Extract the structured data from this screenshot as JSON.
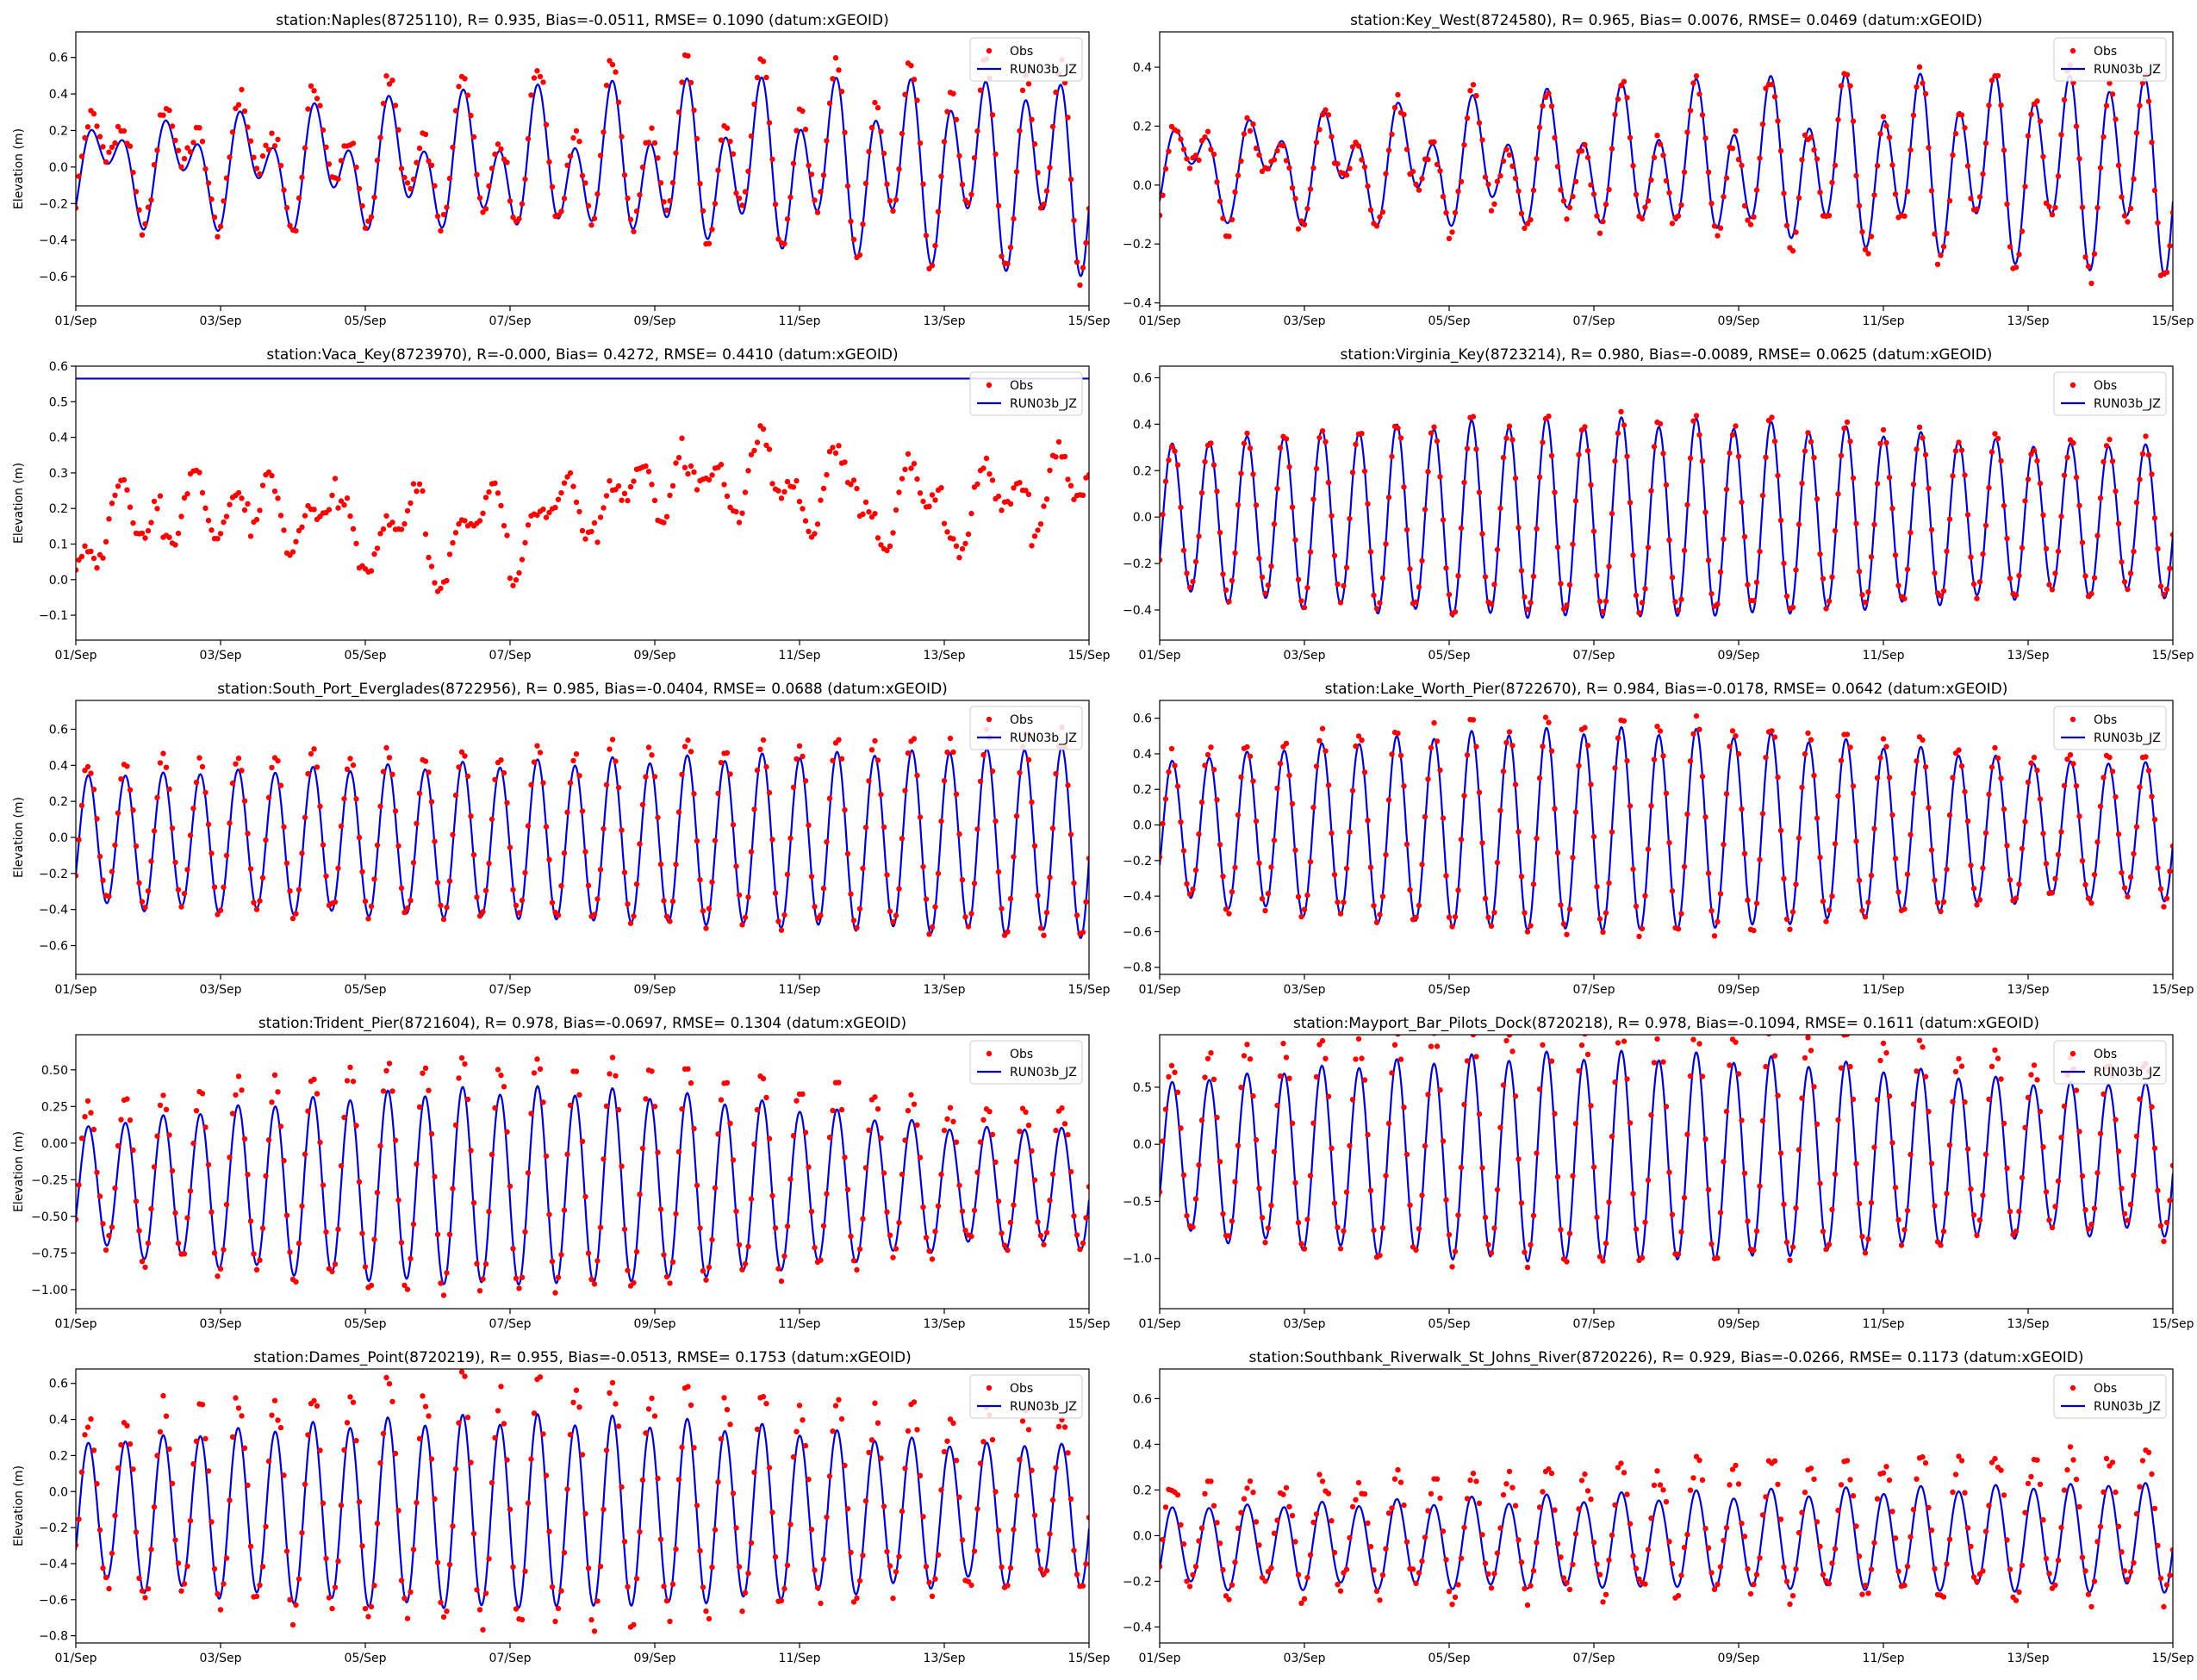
{
  "figure": {
    "obs_color": "#ff0000",
    "model_color": "#0000cc",
    "legend_obs": "Obs",
    "legend_model": "RUN03b_JZ",
    "xlabel_dates": [
      "01/Sep",
      "03/Sep",
      "05/Sep",
      "07/Sep",
      "09/Sep",
      "11/Sep",
      "13/Sep",
      "15/Sep"
    ]
  },
  "chart_data": [
    {
      "type": "line",
      "title": "station:Naples(8725110), R= 0.935, Bias=-0.0511, RMSE= 0.1090 (datum:xGEOID)",
      "ylabel": "Elevation (m)",
      "xlim": [
        0,
        14
      ],
      "ylim": [
        -0.76,
        0.74
      ],
      "yticks": [
        -0.6,
        -0.4,
        -0.2,
        0.0,
        0.2,
        0.4,
        0.6
      ],
      "ytick_labels": [
        "−0.6",
        "−0.4",
        "−0.2",
        "0.0",
        "0.2",
        "0.4",
        "0.6"
      ],
      "legend": [
        "Obs",
        "RUN03b_JZ"
      ],
      "series": [
        {
          "name": "RUN03b_JZ",
          "kind": "line",
          "mean": 0.0,
          "amp_start": 0.15,
          "amp_end": 0.42,
          "m2_mode": "ramp",
          "diurnal": 0.18
        },
        {
          "name": "Obs",
          "kind": "points",
          "bias": 0.05,
          "scale": 1.12,
          "noise": 0.05
        }
      ]
    },
    {
      "type": "line",
      "title": "station:Key_West(8724580), R= 0.965, Bias= 0.0076, RMSE= 0.0469 (datum:xGEOID)",
      "ylabel": "",
      "xlim": [
        0,
        14
      ],
      "ylim": [
        -0.41,
        0.52
      ],
      "yticks": [
        -0.4,
        -0.2,
        0.0,
        0.2,
        0.4
      ],
      "ytick_labels": [
        "−0.4",
        "−0.2",
        "0.0",
        "0.2",
        "0.4"
      ],
      "legend": [
        "Obs",
        "RUN03b_JZ"
      ],
      "series": [
        {
          "name": "RUN03b_JZ",
          "kind": "line",
          "mean": 0.07,
          "amp_start": 0.09,
          "amp_end": 0.28,
          "m2_mode": "ramp",
          "diurnal": 0.1
        },
        {
          "name": "Obs",
          "kind": "points",
          "bias": -0.01,
          "scale": 1.05,
          "noise": 0.035
        }
      ]
    },
    {
      "type": "line",
      "title": "station:Vaca_Key(8723970), R=-0.000, Bias= 0.4272, RMSE= 0.4410 (datum:xGEOID)",
      "ylabel": "Elevation (m)",
      "xlim": [
        0,
        14
      ],
      "ylim": [
        -0.17,
        0.6
      ],
      "yticks": [
        -0.1,
        0.0,
        0.1,
        0.2,
        0.3,
        0.4,
        0.5,
        0.6
      ],
      "ytick_labels": [
        "−0.1",
        "0.0",
        "0.1",
        "0.2",
        "0.3",
        "0.4",
        "0.5",
        "0.6"
      ],
      "legend": [
        "Obs",
        "RUN03b_JZ"
      ],
      "series": [
        {
          "name": "RUN03b_JZ",
          "kind": "flat",
          "value": 0.565
        },
        {
          "name": "Obs",
          "kind": "points",
          "pattern": "vaca",
          "noise": 0.02
        }
      ]
    },
    {
      "type": "line",
      "title": "station:Virginia_Key(8723214), R= 0.980, Bias=-0.0089, RMSE= 0.0625 (datum:xGEOID)",
      "ylabel": "",
      "xlim": [
        0,
        14
      ],
      "ylim": [
        -0.53,
        0.65
      ],
      "yticks": [
        -0.4,
        -0.2,
        0.0,
        0.2,
        0.4,
        0.6
      ],
      "ytick_labels": [
        "−0.4",
        "−0.2",
        "0.0",
        "0.2",
        "0.4",
        "0.6"
      ],
      "legend": [
        "Obs",
        "RUN03b_JZ"
      ],
      "series": [
        {
          "name": "RUN03b_JZ",
          "kind": "line",
          "mean": -0.01,
          "amp_start": 0.32,
          "amp_end": 0.42,
          "m2_mode": "hump",
          "diurnal": 0.02
        },
        {
          "name": "Obs",
          "kind": "points",
          "bias": 0.01,
          "scale": 1.0,
          "noise": 0.03
        }
      ]
    },
    {
      "type": "line",
      "title": "station:South_Port_Everglades(8722956), R= 0.985, Bias=-0.0404, RMSE= 0.0688 (datum:xGEOID)",
      "ylabel": "Elevation (m)",
      "xlim": [
        0,
        14
      ],
      "ylim": [
        -0.76,
        0.76
      ],
      "yticks": [
        -0.6,
        -0.4,
        -0.2,
        0.0,
        0.2,
        0.4,
        0.6
      ],
      "ytick_labels": [
        "−0.6",
        "−0.4",
        "−0.2",
        "0.0",
        "0.2",
        "0.4",
        "0.6"
      ],
      "legend": [
        "Obs",
        "RUN03b_JZ"
      ],
      "series": [
        {
          "name": "RUN03b_JZ",
          "kind": "line",
          "mean": -0.02,
          "amp_start": 0.36,
          "amp_end": 0.52,
          "m2_mode": "ramp",
          "diurnal": 0.02
        },
        {
          "name": "Obs",
          "kind": "points",
          "bias": 0.04,
          "scale": 1.08,
          "noise": 0.035
        }
      ]
    },
    {
      "type": "line",
      "title": "station:Lake_Worth_Pier(8722670), R= 0.984, Bias=-0.0178, RMSE= 0.0642 (datum:xGEOID)",
      "ylabel": "",
      "xlim": [
        0,
        14
      ],
      "ylim": [
        -0.84,
        0.7
      ],
      "yticks": [
        -0.8,
        -0.6,
        -0.4,
        -0.2,
        0.0,
        0.2,
        0.4,
        0.6
      ],
      "ytick_labels": [
        "−0.8",
        "−0.6",
        "−0.4",
        "−0.2",
        "0.0",
        "0.2",
        "0.4",
        "0.6"
      ],
      "legend": [
        "Obs",
        "RUN03b_JZ"
      ],
      "series": [
        {
          "name": "RUN03b_JZ",
          "kind": "line",
          "mean": -0.03,
          "amp_start": 0.38,
          "amp_end": 0.56,
          "m2_mode": "hump",
          "diurnal": 0.02
        },
        {
          "name": "Obs",
          "kind": "points",
          "bias": 0.02,
          "scale": 1.06,
          "noise": 0.04
        }
      ]
    },
    {
      "type": "line",
      "title": "station:Trident_Pier(8721604), R= 0.978, Bias=-0.0697, RMSE= 0.1304 (datum:xGEOID)",
      "ylabel": "Elevation (m)",
      "xlim": [
        0,
        14
      ],
      "ylim": [
        -1.13,
        0.74
      ],
      "yticks": [
        -1.0,
        -0.75,
        -0.5,
        -0.25,
        0.0,
        0.25,
        0.5
      ],
      "ytick_labels": [
        "−1.00",
        "−0.75",
        "−0.50",
        "−0.25",
        "0.00",
        "0.25",
        "0.50"
      ],
      "legend": [
        "Obs",
        "RUN03b_JZ"
      ],
      "series": [
        {
          "name": "RUN03b_JZ",
          "kind": "line",
          "mean": -0.3,
          "amp_start": 0.4,
          "amp_end": 0.66,
          "m2_mode": "hump",
          "diurnal": 0.03
        },
        {
          "name": "Obs",
          "kind": "points",
          "bias": 0.07,
          "scale": 1.18,
          "noise": 0.05
        }
      ]
    },
    {
      "type": "line",
      "title": "station:Mayport_Bar_Pilots_Dock(8720218), R= 0.978, Bias=-0.1094, RMSE= 0.1611 (datum:xGEOID)",
      "ylabel": "",
      "xlim": [
        0,
        14
      ],
      "ylim": [
        -1.44,
        0.96
      ],
      "yticks": [
        -1.0,
        -0.5,
        0.0,
        0.5
      ],
      "ytick_labels": [
        "−1.0",
        "−0.5",
        "0.0",
        "0.5"
      ],
      "legend": [
        "Obs",
        "RUN03b_JZ"
      ],
      "series": [
        {
          "name": "RUN03b_JZ",
          "kind": "line",
          "mean": -0.12,
          "amp_start": 0.65,
          "amp_end": 0.9,
          "m2_mode": "hump",
          "diurnal": 0.04
        },
        {
          "name": "Obs",
          "kind": "points",
          "bias": 0.11,
          "scale": 1.14,
          "noise": 0.06
        }
      ]
    },
    {
      "type": "line",
      "title": "station:Dames_Point(8720219), R= 0.955, Bias=-0.0513, RMSE= 0.1753 (datum:xGEOID)",
      "ylabel": "Elevation (m)",
      "xlim": [
        0,
        14
      ],
      "ylim": [
        -0.84,
        0.68
      ],
      "yticks": [
        -0.8,
        -0.6,
        -0.4,
        -0.2,
        0.0,
        0.2,
        0.4,
        0.6
      ],
      "ytick_labels": [
        "−0.8",
        "−0.6",
        "−0.4",
        "−0.2",
        "0.0",
        "0.2",
        "0.4",
        "0.6"
      ],
      "legend": [
        "Obs",
        "RUN03b_JZ"
      ],
      "series": [
        {
          "name": "RUN03b_JZ",
          "kind": "line",
          "mean": -0.12,
          "amp_start": 0.38,
          "amp_end": 0.52,
          "m2_mode": "hump",
          "diurnal": 0.03
        },
        {
          "name": "Obs",
          "kind": "points",
          "bias": 0.05,
          "scale": 1.25,
          "noise": 0.07,
          "phase_shift": 0.3
        }
      ]
    },
    {
      "type": "line",
      "title": "station:Southbank_Riverwalk_St_Johns_River(8720226), R= 0.929, Bias=-0.0266, RMSE= 0.1173 (datum:xGEOID)",
      "ylabel": "",
      "xlim": [
        0,
        14
      ],
      "ylim": [
        -0.47,
        0.73
      ],
      "yticks": [
        -0.4,
        -0.2,
        0.0,
        0.2,
        0.4,
        0.6
      ],
      "ytick_labels": [
        "−0.4",
        "−0.2",
        "0.0",
        "0.2",
        "0.4",
        "0.6"
      ],
      "legend": [
        "Obs",
        "RUN03b_JZ"
      ],
      "series": [
        {
          "name": "RUN03b_JZ",
          "kind": "line",
          "mean": -0.05,
          "amp_start": 0.17,
          "amp_end": 0.23,
          "m2_mode": "ramp",
          "mean_end": 0.0,
          "diurnal": 0.02
        },
        {
          "name": "Obs",
          "kind": "points",
          "bias": 0.04,
          "scale": 1.35,
          "noise": 0.05,
          "phase_shift": 0.35
        }
      ]
    }
  ]
}
